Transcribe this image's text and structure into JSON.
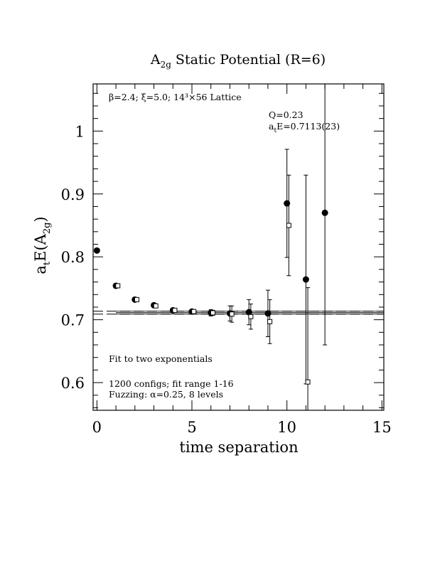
{
  "chart_data": {
    "type": "errorbar-scatter",
    "title": {
      "main": "A",
      "sub": "2g",
      "rest": " Static Potential (R=6)"
    },
    "xlabel": "time separation",
    "ylabel": {
      "main": "a",
      "sub1": "t",
      "mid": "E(A",
      "sub2": "2g",
      "end": ")"
    },
    "annotations": {
      "lattice": "β=2.4; ξ=5.0; 14³×56 Lattice",
      "q": "Q=0.23",
      "energy": {
        "main": "a",
        "sub": "t",
        "rest": "E=0.7113(23)"
      },
      "fit": "Fit to two exponentials",
      "configs": "1200 configs; fit range 1-16",
      "fuzzing": "Fuzzing: α=0.25, 8 levels"
    },
    "xlim": [
      -0.2,
      15.1
    ],
    "ylim": [
      0.556,
      1.075
    ],
    "xticks": [
      0,
      5,
      10,
      15
    ],
    "yticks": [
      0.6,
      0.7,
      0.8,
      0.9,
      1
    ],
    "xminorticks": [
      1,
      2,
      3,
      4,
      6,
      7,
      8,
      9,
      11,
      12,
      13,
      14
    ],
    "yminorticks": [
      0.56,
      0.58,
      0.62,
      0.64,
      0.66,
      0.68,
      0.72,
      0.74,
      0.76,
      0.78,
      0.82,
      0.84,
      0.86,
      0.88,
      0.92,
      0.94,
      0.96,
      0.98,
      1.02,
      1.04,
      1.06
    ],
    "fit": {
      "value": 0.7113,
      "error": 0.0023,
      "range": [
        1,
        16
      ]
    },
    "series": [
      {
        "marker": "circle",
        "color": "#000000",
        "x": [
          0,
          1,
          2,
          3,
          4,
          5,
          6,
          7,
          8,
          9,
          10,
          11,
          12
        ],
        "values": [
          0.81,
          0.754,
          0.732,
          0.723,
          0.715,
          0.713,
          0.711,
          0.71,
          0.712,
          0.71,
          0.885,
          0.764,
          0.87
        ],
        "errors": [
          0.003,
          0.002,
          0.002,
          0.003,
          0.003,
          0.003,
          0.005,
          0.012,
          0.02,
          0.037,
          0.086,
          0.166,
          0.21
        ]
      },
      {
        "marker": "square",
        "color": "#000000",
        "x": [
          1.1,
          2.1,
          3.1,
          4.1,
          5.1,
          6.1,
          7.1,
          8.1,
          9.1,
          10.1,
          11.1
        ],
        "values": [
          0.754,
          0.732,
          0.722,
          0.715,
          0.713,
          0.711,
          0.709,
          0.705,
          0.697,
          0.85,
          0.601
        ],
        "errors": [
          0.002,
          0.002,
          0.003,
          0.003,
          0.003,
          0.004,
          0.013,
          0.02,
          0.035,
          0.08,
          0.15
        ]
      }
    ]
  }
}
